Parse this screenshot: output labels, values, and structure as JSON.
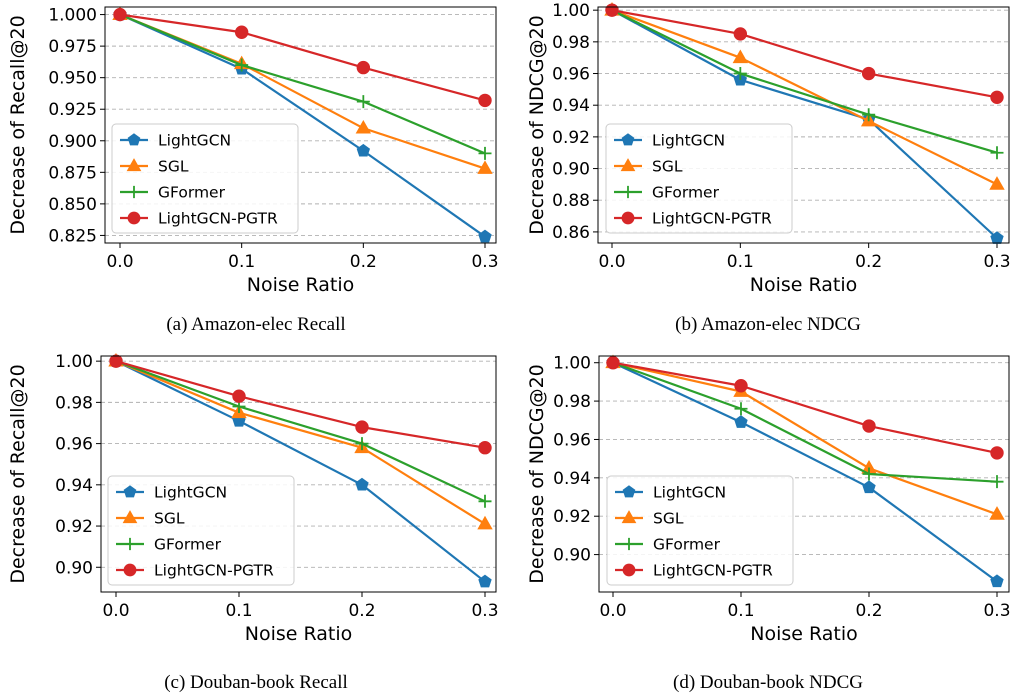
{
  "chart_data": [
    {
      "type": "line",
      "caption": "(a) Amazon-elec Recall",
      "xlabel": "Noise Ratio",
      "ylabel": "Decrease of Recall@20",
      "x": [
        0.0,
        0.1,
        0.2,
        0.3
      ],
      "xticks": [
        "0.0",
        "0.1",
        "0.2",
        "0.3"
      ],
      "ylim": [
        0.819,
        1.006
      ],
      "yticks": [
        "0.825",
        "0.850",
        "0.875",
        "0.900",
        "0.925",
        "0.950",
        "0.975",
        "1.000"
      ],
      "ytick_values": [
        0.825,
        0.85,
        0.875,
        0.9,
        0.925,
        0.95,
        0.975,
        1.0
      ],
      "grid": "horizontal",
      "legend_position": "lower-left",
      "series": [
        {
          "name": "LightGCN",
          "color": "#1f77b4",
          "marker": "pentagon",
          "values": [
            1.0,
            0.957,
            0.892,
            0.824
          ]
        },
        {
          "name": "SGL",
          "color": "#ff7f0e",
          "marker": "triangle",
          "values": [
            1.0,
            0.961,
            0.91,
            0.878
          ]
        },
        {
          "name": "GFormer",
          "color": "#2ca02c",
          "marker": "plus",
          "values": [
            1.0,
            0.96,
            0.931,
            0.89
          ]
        },
        {
          "name": "LightGCN-PGTR",
          "color": "#d62728",
          "marker": "circle",
          "values": [
            1.0,
            0.986,
            0.958,
            0.932
          ]
        }
      ]
    },
    {
      "type": "line",
      "caption": "(b) Amazon-elec NDCG",
      "xlabel": "Noise Ratio",
      "ylabel": "Decrease of NDCG@20",
      "x": [
        0.0,
        0.1,
        0.2,
        0.3
      ],
      "xticks": [
        "0.0",
        "0.1",
        "0.2",
        "0.3"
      ],
      "ylim": [
        0.853,
        1.002
      ],
      "yticks": [
        "0.86",
        "0.88",
        "0.90",
        "0.92",
        "0.94",
        "0.96",
        "0.98",
        "1.00"
      ],
      "ytick_values": [
        0.86,
        0.88,
        0.9,
        0.92,
        0.94,
        0.96,
        0.98,
        1.0
      ],
      "grid": "horizontal",
      "legend_position": "lower-left",
      "series": [
        {
          "name": "LightGCN",
          "color": "#1f77b4",
          "marker": "pentagon",
          "values": [
            1.0,
            0.956,
            0.931,
            0.856
          ]
        },
        {
          "name": "SGL",
          "color": "#ff7f0e",
          "marker": "triangle",
          "values": [
            1.0,
            0.97,
            0.93,
            0.89
          ]
        },
        {
          "name": "GFormer",
          "color": "#2ca02c",
          "marker": "plus",
          "values": [
            1.0,
            0.96,
            0.934,
            0.91
          ]
        },
        {
          "name": "LightGCN-PGTR",
          "color": "#d62728",
          "marker": "circle",
          "values": [
            1.0,
            0.985,
            0.96,
            0.945
          ]
        }
      ]
    },
    {
      "type": "line",
      "caption": "(c) Douban-book Recall",
      "xlabel": "Noise Ratio",
      "ylabel": "Decrease of Recall@20",
      "x": [
        0.0,
        0.1,
        0.2,
        0.3
      ],
      "xticks": [
        "0.0",
        "0.1",
        "0.2",
        "0.3"
      ],
      "ylim": [
        0.888,
        1.0025
      ],
      "yticks": [
        "0.90",
        "0.92",
        "0.94",
        "0.96",
        "0.98",
        "1.00"
      ],
      "ytick_values": [
        0.9,
        0.92,
        0.94,
        0.96,
        0.98,
        1.0
      ],
      "grid": "horizontal",
      "legend_position": "lower-left",
      "series": [
        {
          "name": "LightGCN",
          "color": "#1f77b4",
          "marker": "pentagon",
          "values": [
            1.0,
            0.971,
            0.94,
            0.893
          ]
        },
        {
          "name": "SGL",
          "color": "#ff7f0e",
          "marker": "triangle",
          "values": [
            1.0,
            0.975,
            0.958,
            0.921
          ]
        },
        {
          "name": "GFormer",
          "color": "#2ca02c",
          "marker": "plus",
          "values": [
            1.0,
            0.978,
            0.96,
            0.932
          ]
        },
        {
          "name": "LightGCN-PGTR",
          "color": "#d62728",
          "marker": "circle",
          "values": [
            1.0,
            0.983,
            0.968,
            0.958
          ]
        }
      ]
    },
    {
      "type": "line",
      "caption": "(d) Douban-book NDCG",
      "xlabel": "Noise Ratio",
      "ylabel": "Decrease of NDCG@20",
      "x": [
        0.0,
        0.1,
        0.2,
        0.3
      ],
      "xticks": [
        "0.0",
        "0.1",
        "0.2",
        "0.3"
      ],
      "ylim": [
        0.8805,
        1.0035
      ],
      "yticks": [
        "0.90",
        "0.92",
        "0.94",
        "0.96",
        "0.98",
        "1.00"
      ],
      "ytick_values": [
        0.9,
        0.92,
        0.94,
        0.96,
        0.98,
        1.0
      ],
      "grid": "horizontal",
      "legend_position": "lower-left",
      "series": [
        {
          "name": "LightGCN",
          "color": "#1f77b4",
          "marker": "pentagon",
          "values": [
            1.0,
            0.969,
            0.935,
            0.886
          ]
        },
        {
          "name": "SGL",
          "color": "#ff7f0e",
          "marker": "triangle",
          "values": [
            1.0,
            0.985,
            0.945,
            0.921
          ]
        },
        {
          "name": "GFormer",
          "color": "#2ca02c",
          "marker": "plus",
          "values": [
            1.0,
            0.976,
            0.942,
            0.938
          ]
        },
        {
          "name": "LightGCN-PGTR",
          "color": "#d62728",
          "marker": "circle",
          "values": [
            1.0,
            0.988,
            0.967,
            0.953
          ]
        }
      ]
    }
  ]
}
